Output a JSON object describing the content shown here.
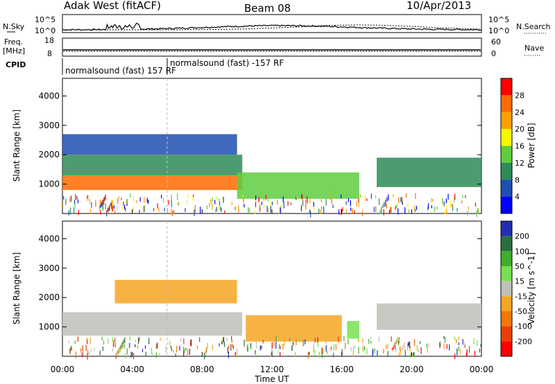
{
  "header": {
    "station": "Adak West (fitACF)",
    "beam": "Beam 08",
    "date": "10/Apr/2013"
  },
  "strip_labels": {
    "nsky": "N.Sky",
    "nsearch": "N.Search",
    "freq_top": "Freq.",
    "freq_unit": "[MHz]",
    "nave": "Nave",
    "cpid": "CPID"
  },
  "strip_ticks": {
    "nsky_left_hi": "10^5",
    "nsky_left_lo": "10^0",
    "nsky_right_hi": "10^5",
    "nsky_right_lo": "10^0",
    "freq_hi": "18",
    "freq_lo": "8",
    "nave_hi": "60",
    "nave_lo": "0"
  },
  "cpid_segments": [
    {
      "label": "normalsound (fast) 157 RF",
      "start_hour": 0
    },
    {
      "label": "normalsound (fast) -157 RF",
      "start_hour": 6
    }
  ],
  "colors": {
    "power_scale": [
      "#0000ff",
      "#1f4fb0",
      "#2e8b57",
      "#5fcd3f",
      "#f7f700",
      "#ff9f00",
      "#ff6a00",
      "#ff0000"
    ],
    "velocity_scale": [
      "#1f2fb0",
      "#2a6f40",
      "#3fae2a",
      "#78e050",
      "#c0c0b8",
      "#f5a623",
      "#f07800",
      "#e84000",
      "#ff0000"
    ]
  },
  "chart_data": [
    {
      "type": "heatmap",
      "name": "power",
      "ylabel": "Slant Range [km]",
      "yticks": [
        "1000",
        "2000",
        "3000",
        "4000"
      ],
      "ylim": [
        0,
        4600
      ],
      "colorbar_label": "Power [dB]",
      "colorbar_ticks": [
        "4",
        "8",
        "12",
        "16",
        "20",
        "24",
        "28"
      ],
      "bands": [
        {
          "t0": 0,
          "t1": 10.3,
          "r0": 800,
          "r1": 1300,
          "value": 26
        },
        {
          "t0": 0,
          "t1": 10.3,
          "r0": 1300,
          "r1": 2000,
          "value": 12
        },
        {
          "t0": 0,
          "t1": 10.0,
          "r0": 2000,
          "r1": 2700,
          "value": 8
        },
        {
          "t0": 10.0,
          "t1": 17.0,
          "r0": 500,
          "r1": 1400,
          "value": 14
        },
        {
          "t0": 18.0,
          "t1": 24.0,
          "r0": 900,
          "r1": 1900,
          "value": 12
        }
      ]
    },
    {
      "type": "heatmap",
      "name": "velocity",
      "ylabel": "Slant Range [km]",
      "yticks": [
        "1000",
        "2000",
        "3000",
        "4000"
      ],
      "ylim": [
        0,
        4600
      ],
      "colorbar_label": "Velocity [m s^-1]",
      "colorbar_ticks": [
        "200",
        "100",
        "50",
        "15",
        "-15",
        "-50",
        "-100",
        "-200"
      ],
      "bands": [
        {
          "t0": 0,
          "t1": 10.3,
          "r0": 700,
          "r1": 1500,
          "value": 0
        },
        {
          "t0": 3.0,
          "t1": 10.0,
          "r0": 1800,
          "r1": 2600,
          "value": -60
        },
        {
          "t0": 10.5,
          "t1": 16.0,
          "r0": 500,
          "r1": 1400,
          "value": -60
        },
        {
          "t0": 16.3,
          "t1": 17.0,
          "r0": 600,
          "r1": 1200,
          "value": 30
        },
        {
          "t0": 18.0,
          "t1": 24.0,
          "r0": 900,
          "r1": 1800,
          "value": 0
        }
      ]
    }
  ],
  "xaxis": {
    "label": "Time UT",
    "ticks": [
      "00:00",
      "04:00",
      "08:00",
      "12:00",
      "16:00",
      "20:00",
      "00:00"
    ]
  }
}
